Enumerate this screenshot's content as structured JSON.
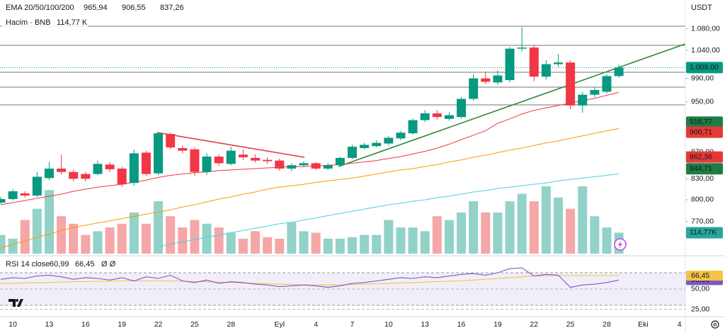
{
  "chart_data": {
    "type": "candlestick",
    "currency": "USDT",
    "header": {
      "indicator": "EMA 20/50/100/200",
      "volume_title": "Hacim · BNB",
      "volume_value": "114,77 K",
      "rsi_title": "RSI 14 close",
      "rsi_extra": "Ø  Ø"
    },
    "categories": [
      null,
      "10",
      null,
      null,
      "13",
      null,
      null,
      "16",
      null,
      null,
      "19",
      null,
      null,
      "22",
      null,
      null,
      "25",
      null,
      null,
      "28",
      null,
      null,
      null,
      "Eyl",
      null,
      null,
      "4",
      null,
      null,
      "7",
      null,
      null,
      "10",
      null,
      null,
      "13",
      null,
      null,
      "16",
      null,
      null,
      "19",
      null,
      null,
      "22",
      null,
      null,
      "25",
      null,
      null,
      "28",
      null,
      null,
      "Eki",
      null,
      null,
      "4",
      null
    ],
    "open": [
      796,
      801,
      809,
      806,
      831,
      845,
      840,
      837,
      837,
      851,
      845,
      824,
      869,
      838,
      898,
      876,
      874,
      840,
      863,
      852,
      866,
      861,
      858,
      857,
      845,
      850,
      853,
      845,
      850,
      861,
      876,
      879,
      883,
      891,
      899,
      920,
      931,
      922,
      925,
      955,
      990,
      983,
      987,
      1043,
      1045,
      993,
      1015,
      1018,
      944,
      962,
      967,
      994,
      null,
      null,
      null,
      null,
      null,
      null
    ],
    "high": [
      804,
      815,
      812,
      840,
      855,
      866,
      843,
      840,
      857,
      855,
      848,
      874,
      872,
      901,
      900,
      880,
      877,
      868,
      866,
      878,
      874,
      866,
      862,
      860,
      853,
      856,
      855,
      853,
      863,
      881,
      884,
      888,
      895,
      903,
      923,
      936,
      936,
      933,
      958,
      997,
      1002,
      1004,
      1046,
      1083,
      1050,
      1022,
      1033,
      1022,
      967,
      975,
      997,
      1014,
      null,
      null,
      null,
      null,
      null,
      null
    ],
    "low": [
      794,
      799,
      803,
      804,
      828,
      836,
      826,
      826,
      835,
      840,
      818,
      820,
      834,
      835,
      874,
      868,
      834,
      836,
      849,
      850,
      858,
      854,
      852,
      842,
      841,
      847,
      843,
      843,
      848,
      859,
      874,
      877,
      880,
      888,
      897,
      917,
      921,
      919,
      923,
      952,
      980,
      979,
      983,
      1038,
      985,
      988,
      1010,
      938,
      932,
      958,
      964,
      991,
      null,
      null,
      null,
      null,
      null,
      null
    ],
    "close": [
      801,
      812,
      806,
      833,
      845,
      840,
      830,
      830,
      852,
      844,
      822,
      868,
      837,
      899,
      877,
      872,
      840,
      863,
      853,
      872,
      862,
      857,
      856,
      845,
      850,
      853,
      845,
      850,
      861,
      878,
      881,
      884,
      892,
      900,
      920,
      931,
      925,
      928,
      955,
      990,
      984,
      995,
      1043,
      1045,
      993,
      1015,
      1018,
      944,
      962,
      970,
      994,
      1009,
      null,
      null,
      null,
      null,
      null,
      null
    ],
    "up_color": "#089981",
    "down_color": "#f23645",
    "log_scale": true,
    "ylim": [
      726,
      1136
    ],
    "yticks": [
      {
        "value": 1080,
        "label": "1.080,00"
      },
      {
        "value": 1040,
        "label": "1.040,00"
      },
      {
        "value": 990,
        "label": "990,00"
      },
      {
        "value": 950,
        "label": "950,00"
      },
      {
        "value": 870,
        "label": "870,00"
      },
      {
        "value": 830,
        "label": "830,00"
      },
      {
        "value": 800,
        "label": "800,00"
      },
      {
        "value": 770,
        "label": "770,00"
      }
    ],
    "ema": [
      {
        "color": "#f23645",
        "value_label": "965,94",
        "values": [
          793,
          796,
          799,
          802,
          805,
          808,
          812,
          815,
          818,
          820,
          822,
          825,
          828,
          832,
          835,
          837,
          839,
          840,
          842,
          843,
          844,
          845,
          846,
          847,
          848,
          848,
          849,
          850,
          851,
          853,
          855,
          857,
          860,
          863,
          867,
          871,
          876,
          882,
          889,
          896,
          903,
          915,
          922,
          930,
          936,
          940,
          944,
          948,
          952,
          956,
          961,
          965.94,
          null,
          null,
          null,
          null,
          null,
          null
        ]
      },
      {
        "color": "#ff9800",
        "value_label": "906,55",
        "values": [
          735,
          740,
          744,
          749,
          753,
          758,
          762,
          765,
          768,
          771,
          774,
          777,
          780,
          783,
          786,
          790,
          793,
          797,
          801,
          804,
          808,
          811,
          815,
          818,
          820,
          822,
          825,
          827,
          829,
          831,
          834,
          837,
          840,
          843,
          845,
          848,
          851,
          855,
          858,
          862,
          865,
          869,
          873,
          876,
          880,
          884,
          887,
          891,
          895,
          899,
          903,
          906.55,
          null,
          null,
          null,
          null,
          null,
          null
        ]
      },
      {
        "color": "#4dd0e1",
        "value_label": "837,26",
        "values": [
          null,
          null,
          null,
          null,
          null,
          null,
          null,
          null,
          null,
          null,
          null,
          null,
          null,
          737,
          740,
          743,
          746,
          749,
          752,
          755,
          758,
          761,
          764,
          767,
          769,
          772,
          775,
          778,
          781,
          784,
          787,
          790,
          793,
          795,
          798,
          800,
          803,
          805,
          808,
          811,
          813,
          816,
          818,
          820,
          822,
          824,
          827,
          829,
          831,
          833,
          835,
          837.26,
          null,
          null,
          null,
          null,
          null,
          null
        ]
      }
    ],
    "volume": {
      "up_color": "#92d2c8",
      "down_color": "#f5a6a6",
      "tag_color": "#26a69a",
      "tag_label": "114,77K",
      "values": [
        102.5,
        82,
        184.5,
        246,
        348.5,
        205,
        164,
        102.5,
        123,
        143.5,
        164,
        225.5,
        164,
        287,
        205,
        143.5,
        184.5,
        164,
        143.5,
        114.8,
        82,
        123,
        90.2,
        82,
        172.2,
        123,
        114.8,
        82,
        82,
        90.2,
        102.5,
        102.5,
        184.5,
        143.5,
        143.5,
        123,
        205,
        184.5,
        225.5,
        287,
        225.5,
        225.5,
        287,
        328,
        287,
        369,
        307.5,
        246,
        369,
        205,
        143.5,
        114.77,
        null,
        null,
        null,
        null,
        null,
        null
      ]
    },
    "price_tags": [
      {
        "value": 1009,
        "label": "1.009,00",
        "color": "#089981"
      },
      {
        "value": 916.77,
        "label": "916,77",
        "color": "#1e7d45"
      },
      {
        "value": 900.71,
        "label": "900,71",
        "color": "#e53935"
      },
      {
        "value": 862.36,
        "label": "862,36",
        "color": "#e53935"
      },
      {
        "value": 844.71,
        "label": "844,71",
        "color": "#1e7d45"
      }
    ],
    "rsi": {
      "ylim": [
        16,
        90
      ],
      "yticks": [
        {
          "value": 50,
          "label": "50,00"
        },
        {
          "value": 25,
          "label": "25,00"
        }
      ],
      "band": [
        30,
        70
      ],
      "series": [
        {
          "color": "#7e57c2",
          "value_label": "60,99",
          "values": [
            62,
            64,
            63,
            66,
            67,
            65,
            62,
            64,
            63,
            61,
            64,
            60,
            65,
            63,
            67,
            60,
            58,
            61,
            57,
            59,
            58,
            56,
            55,
            53,
            54,
            55,
            54,
            52,
            54,
            57,
            58,
            60,
            62,
            64,
            63,
            65,
            64,
            66,
            68,
            69,
            67,
            70,
            75,
            76,
            66,
            68,
            67,
            52,
            55,
            56,
            58,
            60.99,
            null,
            null,
            null,
            null,
            null,
            null
          ]
        },
        {
          "color": "#f5c342",
          "value_label": "66,45",
          "values": [
            57,
            57,
            57.5,
            58,
            58,
            58.5,
            59,
            59,
            59.5,
            59.5,
            60,
            60,
            60,
            60,
            60,
            59.5,
            59,
            59,
            58.5,
            58,
            57.5,
            57,
            56.5,
            56,
            55.5,
            55,
            55,
            55,
            55,
            55.5,
            56,
            56.5,
            57,
            57.5,
            58,
            58.5,
            59,
            59.5,
            60,
            61,
            62,
            63,
            64,
            65,
            66,
            66.5,
            66.5,
            66.5,
            66.5,
            66.5,
            66.5,
            66.45,
            null,
            null,
            null,
            null,
            null,
            null
          ]
        }
      ]
    }
  }
}
